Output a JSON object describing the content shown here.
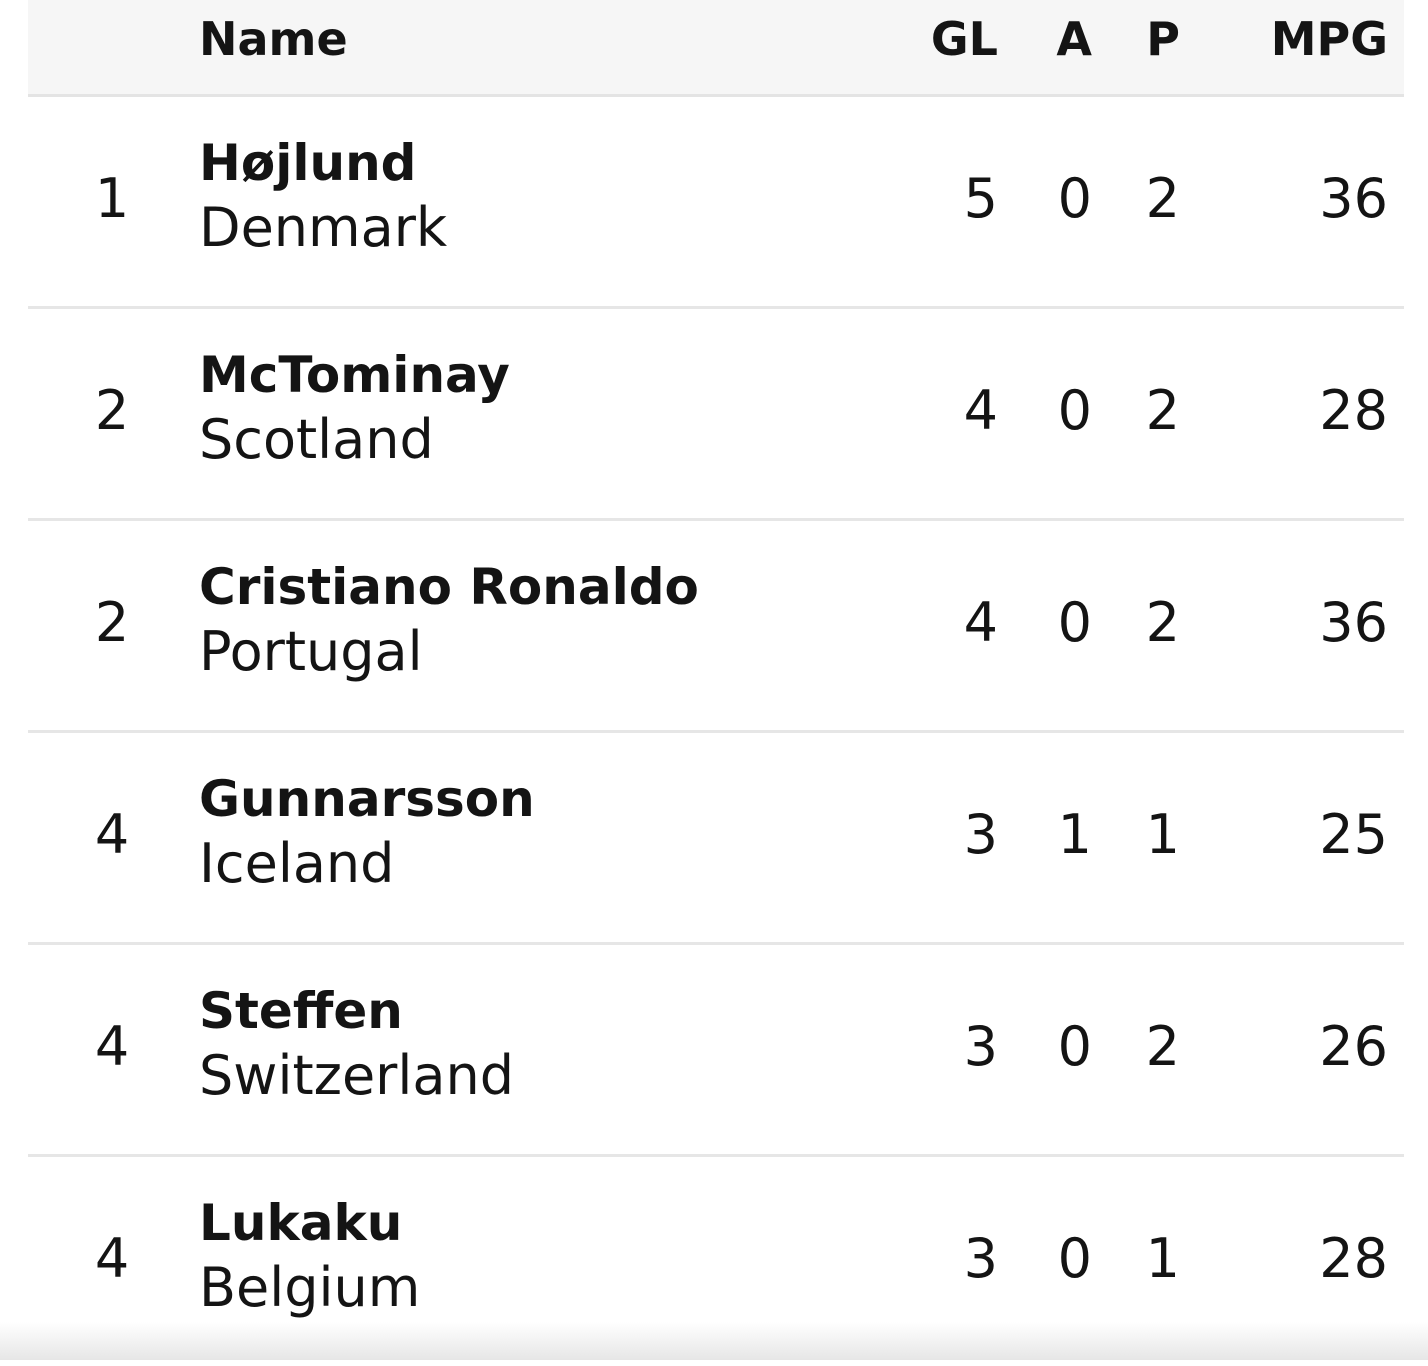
{
  "columns": {
    "name": "Name",
    "goals": "GL",
    "assists": "A",
    "played": "P",
    "mpg": "MPG"
  },
  "rows": [
    {
      "rank": "1",
      "name": "Højlund",
      "country": "Denmark",
      "goals": "5",
      "assists": "0",
      "played": "2",
      "mpg": "36"
    },
    {
      "rank": "2",
      "name": "McTominay",
      "country": "Scotland",
      "goals": "4",
      "assists": "0",
      "played": "2",
      "mpg": "28"
    },
    {
      "rank": "2",
      "name": "Cristiano Ronaldo",
      "country": "Portugal",
      "goals": "4",
      "assists": "0",
      "played": "2",
      "mpg": "36"
    },
    {
      "rank": "4",
      "name": "Gunnarsson",
      "country": "Iceland",
      "goals": "3",
      "assists": "1",
      "played": "1",
      "mpg": "25"
    },
    {
      "rank": "4",
      "name": "Steffen",
      "country": "Switzerland",
      "goals": "3",
      "assists": "0",
      "played": "2",
      "mpg": "26"
    },
    {
      "rank": "4",
      "name": "Lukaku",
      "country": "Belgium",
      "goals": "3",
      "assists": "0",
      "played": "1",
      "mpg": "28"
    }
  ]
}
